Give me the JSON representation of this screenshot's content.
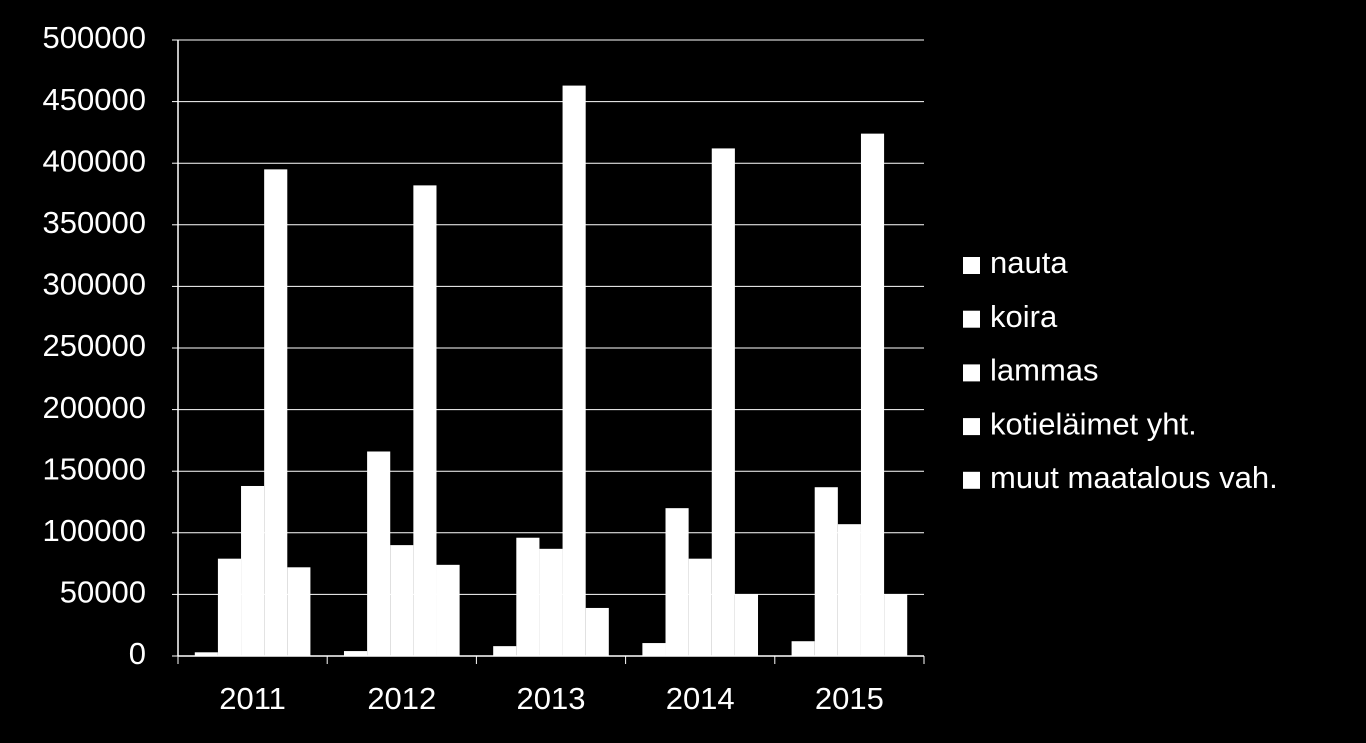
{
  "chart_data": {
    "type": "bar",
    "categories": [
      "2011",
      "2012",
      "2013",
      "2014",
      "2015"
    ],
    "series": [
      {
        "name": "nauta",
        "color": "#ffffff",
        "values": [
          3000,
          4000,
          8000,
          10500,
          12000
        ]
      },
      {
        "name": "koira",
        "color": "#ffffff",
        "values": [
          79000,
          166000,
          96000,
          120000,
          137000
        ]
      },
      {
        "name": "lammas",
        "color": "#ffffff",
        "values": [
          138000,
          90000,
          87000,
          79000,
          107000
        ]
      },
      {
        "name": "kotieläimet yht.",
        "color": "#ffffff",
        "values": [
          395000,
          382000,
          463000,
          412000,
          424000
        ]
      },
      {
        "name": "muut maatalous vah.",
        "color": "#ffffff",
        "values": [
          72000,
          74000,
          39000,
          50000,
          50000
        ]
      }
    ],
    "ylim": [
      0,
      500000
    ],
    "yticks": [
      0,
      50000,
      100000,
      150000,
      200000,
      250000,
      300000,
      350000,
      400000,
      450000,
      500000
    ],
    "grid": true,
    "legend": "right"
  }
}
